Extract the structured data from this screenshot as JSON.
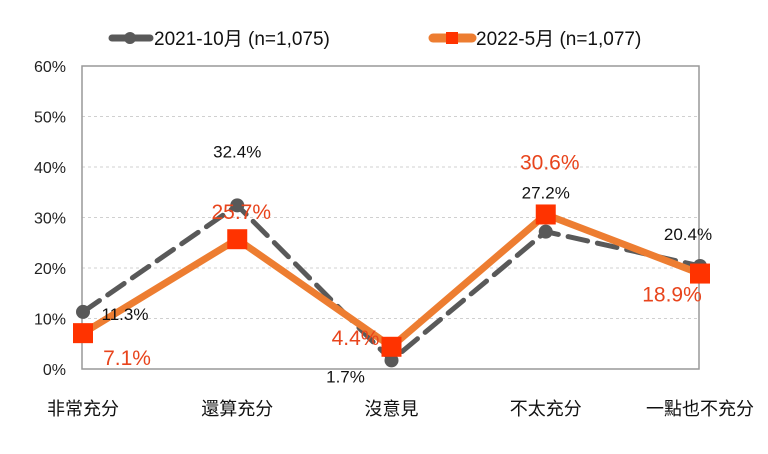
{
  "chart_data": {
    "type": "line",
    "title": "",
    "xlabel": "",
    "ylabel": "",
    "categories": [
      "非常充分",
      "還算充分",
      "沒意見",
      "不太充分",
      "一點也不充分"
    ],
    "ylim": [
      0,
      60
    ],
    "yticks": [
      "0%",
      "10%",
      "20%",
      "30%",
      "40%",
      "50%",
      "60%"
    ],
    "grid": true,
    "legend_position": "top",
    "series": [
      {
        "name": "2021-10月  (n=1,075)",
        "values": [
          11.3,
          32.4,
          1.7,
          27.2,
          20.4
        ],
        "labels": [
          "11.3%",
          "32.4%",
          "1.7%",
          "27.2%",
          "20.4%"
        ],
        "color": "#595959",
        "style": "dashed",
        "marker": "circle"
      },
      {
        "name": "2022-5月  (n=1,077)",
        "values": [
          7.1,
          25.7,
          4.4,
          30.6,
          18.9
        ],
        "labels": [
          "7.1%",
          "25.7%",
          "4.4%",
          "30.6%",
          "18.9%"
        ],
        "color": "#ED7D31",
        "marker_color": "#FF3300",
        "label_color": "#E8441C",
        "style": "solid",
        "marker": "square"
      }
    ]
  }
}
